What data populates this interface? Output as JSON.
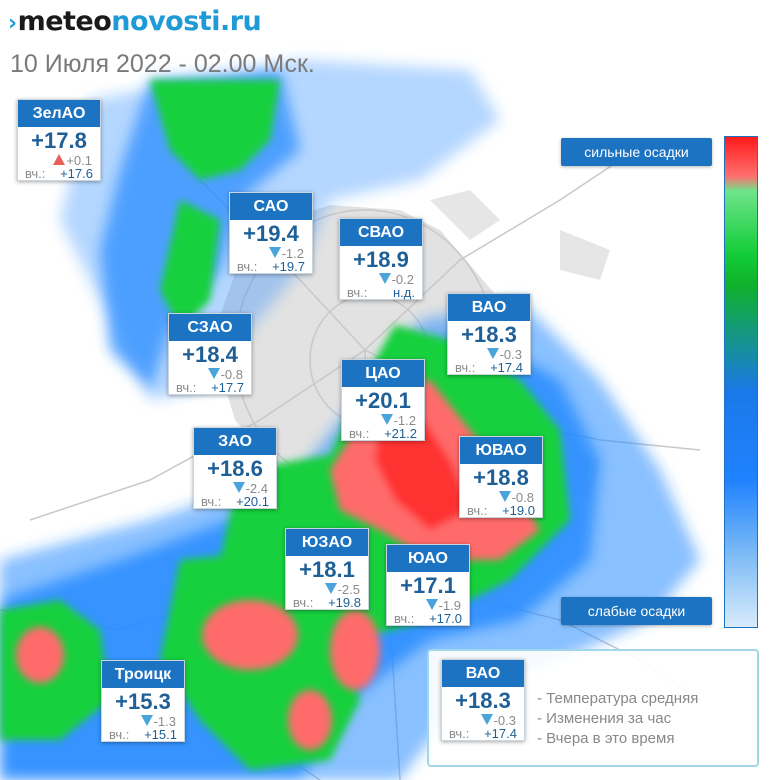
{
  "header": {
    "logo_chevron": "›",
    "logo_part1": "meteo",
    "logo_part2": "novosti.ru",
    "datetime": "10 Июля 2022 - 02.00 Мск."
  },
  "scale": {
    "strong_label": "сильные осадки",
    "weak_label": "слабые осадки"
  },
  "districts": [
    {
      "id": "zelao",
      "name": "ЗелАО",
      "temp": "+17.8",
      "trend": "up",
      "delta": "+0.1",
      "yesterday_label": "вч.:",
      "yesterday": "+17.6"
    },
    {
      "id": "sao",
      "name": "САО",
      "temp": "+19.4",
      "trend": "down",
      "delta": "-1.2",
      "yesterday_label": "вч.:",
      "yesterday": "+19.7"
    },
    {
      "id": "svao",
      "name": "СВАО",
      "temp": "+18.9",
      "trend": "down",
      "delta": "-0.2",
      "yesterday_label": "вч.:",
      "yesterday": "н.д."
    },
    {
      "id": "vao",
      "name": "ВАО",
      "temp": "+18.3",
      "trend": "down",
      "delta": "-0.3",
      "yesterday_label": "вч.:",
      "yesterday": "+17.4"
    },
    {
      "id": "szao",
      "name": "СЗАО",
      "temp": "+18.4",
      "trend": "down",
      "delta": "-0.8",
      "yesterday_label": "вч.:",
      "yesterday": "+17.7"
    },
    {
      "id": "cao",
      "name": "ЦАО",
      "temp": "+20.1",
      "trend": "down",
      "delta": "-1.2",
      "yesterday_label": "вч.:",
      "yesterday": "+21.2"
    },
    {
      "id": "zao",
      "name": "ЗАО",
      "temp": "+18.6",
      "trend": "down",
      "delta": "-2.4",
      "yesterday_label": "вч.:",
      "yesterday": "+20.1"
    },
    {
      "id": "yuvao",
      "name": "ЮВАО",
      "temp": "+18.8",
      "trend": "down",
      "delta": "-0.8",
      "yesterday_label": "вч.:",
      "yesterday": "+19.0"
    },
    {
      "id": "yuzao",
      "name": "ЮЗАО",
      "temp": "+18.1",
      "trend": "down",
      "delta": "-2.5",
      "yesterday_label": "вч.:",
      "yesterday": "+19.8"
    },
    {
      "id": "yuao",
      "name": "ЮАО",
      "temp": "+17.1",
      "trend": "down",
      "delta": "-1.9",
      "yesterday_label": "вч.:",
      "yesterday": "+17.0"
    },
    {
      "id": "troick",
      "name": "Троицк",
      "temp": "+15.3",
      "trend": "down",
      "delta": "-1.3",
      "yesterday_label": "вч.:",
      "yesterday": "+15.1"
    }
  ],
  "legend": {
    "example": {
      "name": "ВАО",
      "temp": "+18.3",
      "trend": "down",
      "delta": "-0.3",
      "yesterday_label": "вч.:",
      "yesterday": "+17.4"
    },
    "line1": "- Температура средняя",
    "line2": "- Изменения за час",
    "line3": "- Вчера в это время"
  },
  "colors": {
    "accent": "#1b73c2",
    "temp_text": "#1d5f96",
    "trend_down": "#4aa4dc",
    "trend_up": "#e8605a",
    "precip_heavy": "#ff2a2a",
    "precip_medium": "#12cc38",
    "precip_light": "#1f82ff"
  }
}
